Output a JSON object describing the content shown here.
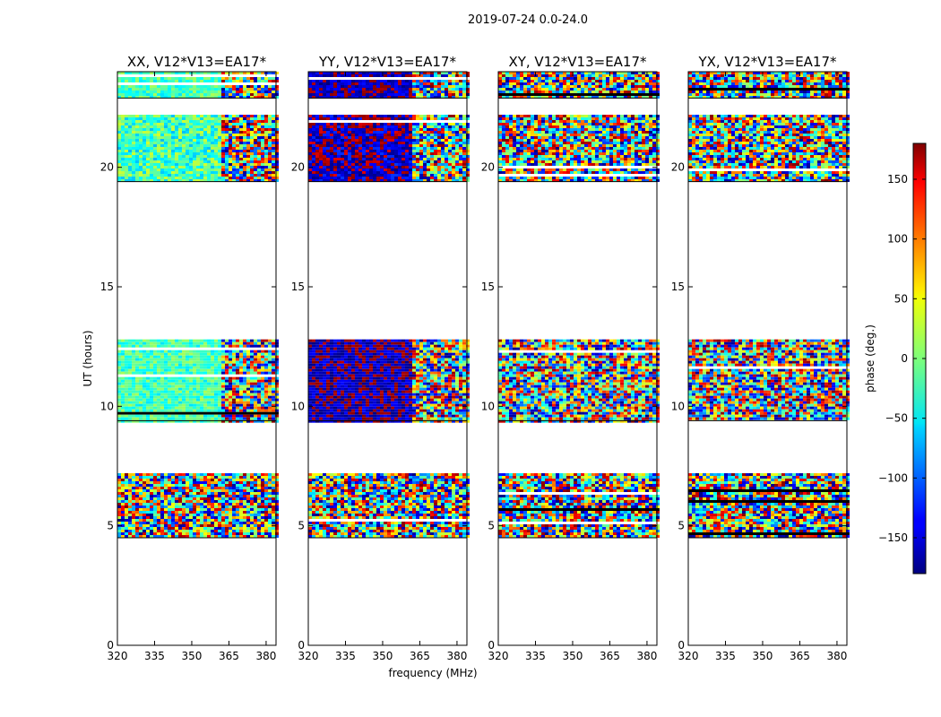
{
  "chart_data": {
    "type": "heatmap",
    "title": "2019-07-24 0.0-24.0",
    "ylabel": "UT (hours)",
    "xlabel": "frequency (MHz)",
    "xlim": [
      320,
      384
    ],
    "ylim": [
      0,
      24
    ],
    "xticks": [
      "320",
      "335",
      "350",
      "365",
      "380"
    ],
    "yticks": [
      "0",
      "5",
      "10",
      "15",
      "20"
    ],
    "colorbar": {
      "label": "phase (deg.)",
      "range": [
        -180,
        180
      ],
      "ticks": [
        "150",
        "100",
        "50",
        "0",
        "−50",
        "−100",
        "−150"
      ],
      "tick_values": [
        150,
        100,
        50,
        0,
        -50,
        -100,
        -150
      ],
      "colormap": "jet"
    },
    "observed_time_blocks_hours": [
      {
        "start": 4.5,
        "end": 7.2
      },
      {
        "start": 9.4,
        "end": 12.8
      },
      {
        "start": 19.4,
        "end": 22.2
      },
      {
        "start": 22.9,
        "end": 24.0
      }
    ],
    "panels": [
      {
        "title": "XX, V12*V13=EA17*",
        "typical_phase_deg": -20,
        "split_freq_mhz": 361
      },
      {
        "title": "YY, V12*V13=EA17*",
        "typical_phase_deg": -165,
        "split_freq_mhz": 361
      },
      {
        "title": "XY, V12*V13=EA17*",
        "typical_phase_deg": null,
        "split_freq_mhz": null
      },
      {
        "title": "YX, V12*V13=EA17*",
        "typical_phase_deg": null,
        "split_freq_mhz": null
      }
    ]
  }
}
